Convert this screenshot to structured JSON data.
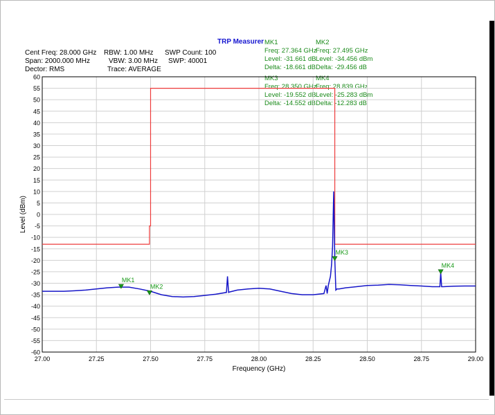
{
  "window": {
    "title": "TRP Measurer"
  },
  "settings": {
    "cent_freq": "Cent Freq: 28.000 GHz",
    "span": "Span: 2000.000 MHz",
    "detector": "Dector: RMS",
    "rbw": "RBW: 1.00 MHz",
    "vbw": "VBW: 3.00 MHz",
    "trace": "Trace: AVERAGE",
    "swp_count": "SWP Count: 100",
    "swp": "SWP: 40001"
  },
  "markers_table": {
    "mk1": {
      "name": "MK1",
      "freq": "Freq: 27.364 GHz",
      "level": "Level: -31.661 dB",
      "delta": "Delta: -18.661 dB"
    },
    "mk2": {
      "name": "MK2",
      "freq": "Freq: 27.495 GHz",
      "level": "Level: -34.456 dBm",
      "delta": "Delta: -29.456 dB"
    },
    "mk3": {
      "name": "MK3",
      "freq": "Freq: 28.350 GHz",
      "level": "Level: -19.552 dB",
      "delta": "Delta: -14.552 dB"
    },
    "mk4": {
      "name": "MK4",
      "freq": "Freq: 28.839 GHz",
      "level": "Level: -25.283 dBm",
      "delta": "Delta: -12.283 dB"
    }
  },
  "colors": {
    "trace": "#1515c8",
    "limit": "#ee3b3b",
    "marker": "#1a9a1a",
    "grid": "#d0d0d0",
    "title": "#1515d0"
  },
  "chart_data": {
    "type": "line",
    "title": "TRP Measurer",
    "xlabel": "Frequency (GHz)",
    "ylabel": "Level (dBm)",
    "xlim": [
      27.0,
      29.0
    ],
    "ylim": [
      -60,
      60
    ],
    "xticks": [
      "27.00",
      "27.25",
      "27.50",
      "27.75",
      "28.00",
      "28.25",
      "28.50",
      "28.75",
      "29.00"
    ],
    "yticks": [
      "60",
      "55",
      "50",
      "45",
      "40",
      "35",
      "30",
      "25",
      "20",
      "15",
      "10",
      "5",
      "0",
      "-5",
      "-10",
      "-15",
      "-20",
      "-25",
      "-30",
      "-35",
      "-40",
      "-45",
      "-50",
      "-55",
      "-60"
    ],
    "grid": true,
    "series": [
      {
        "name": "",
        "x": [
          27.0,
          27.05,
          27.1,
          27.15,
          27.2,
          27.25,
          27.3,
          27.35,
          27.4,
          27.45,
          27.5,
          27.55,
          27.6,
          27.65,
          27.7,
          27.75,
          27.8,
          27.85,
          27.855,
          27.86,
          27.865,
          27.9,
          27.95,
          28.0,
          28.05,
          28.1,
          28.15,
          28.2,
          28.25,
          28.3,
          28.31,
          28.315,
          28.32,
          28.33,
          28.335,
          28.34,
          28.345,
          28.35,
          28.355,
          28.36,
          28.37,
          28.4,
          28.45,
          28.5,
          28.55,
          28.6,
          28.65,
          28.7,
          28.75,
          28.8,
          28.835,
          28.839,
          28.843,
          28.85,
          28.9,
          28.95,
          29.0
        ],
        "y": [
          -33.5,
          -33.5,
          -33.5,
          -33.3,
          -33.0,
          -32.5,
          -32.0,
          -31.7,
          -31.7,
          -32.5,
          -33.5,
          -35.0,
          -35.8,
          -36.0,
          -35.8,
          -35.3,
          -34.8,
          -34.0,
          -27.0,
          -34.0,
          -33.8,
          -33.0,
          -32.5,
          -32.2,
          -32.5,
          -33.5,
          -34.5,
          -35.0,
          -35.0,
          -34.5,
          -31.0,
          -34.5,
          -31.0,
          -27.0,
          -22.0,
          -14.0,
          10.0,
          -19.5,
          -33.0,
          -32.5,
          -32.5,
          -32.0,
          -31.5,
          -31.0,
          -30.8,
          -30.5,
          -30.7,
          -31.0,
          -31.2,
          -31.5,
          -31.5,
          -25.3,
          -31.5,
          -31.5,
          -31.3,
          -31.2,
          -31.2
        ]
      },
      {
        "name": "",
        "x": [
          27.0,
          27.495,
          27.495,
          27.5,
          27.5,
          28.35,
          28.35,
          29.0
        ],
        "y": [
          -13,
          -13,
          -5,
          -5,
          55,
          55,
          -13,
          -13
        ]
      }
    ],
    "markers": [
      {
        "label": "MK1",
        "x": 27.364,
        "y": -31.661
      },
      {
        "label": "MK2",
        "x": 27.495,
        "y": -34.456
      },
      {
        "label": "MK3",
        "x": 28.35,
        "y": -19.552
      },
      {
        "label": "MK4",
        "x": 28.839,
        "y": -25.283
      }
    ]
  }
}
